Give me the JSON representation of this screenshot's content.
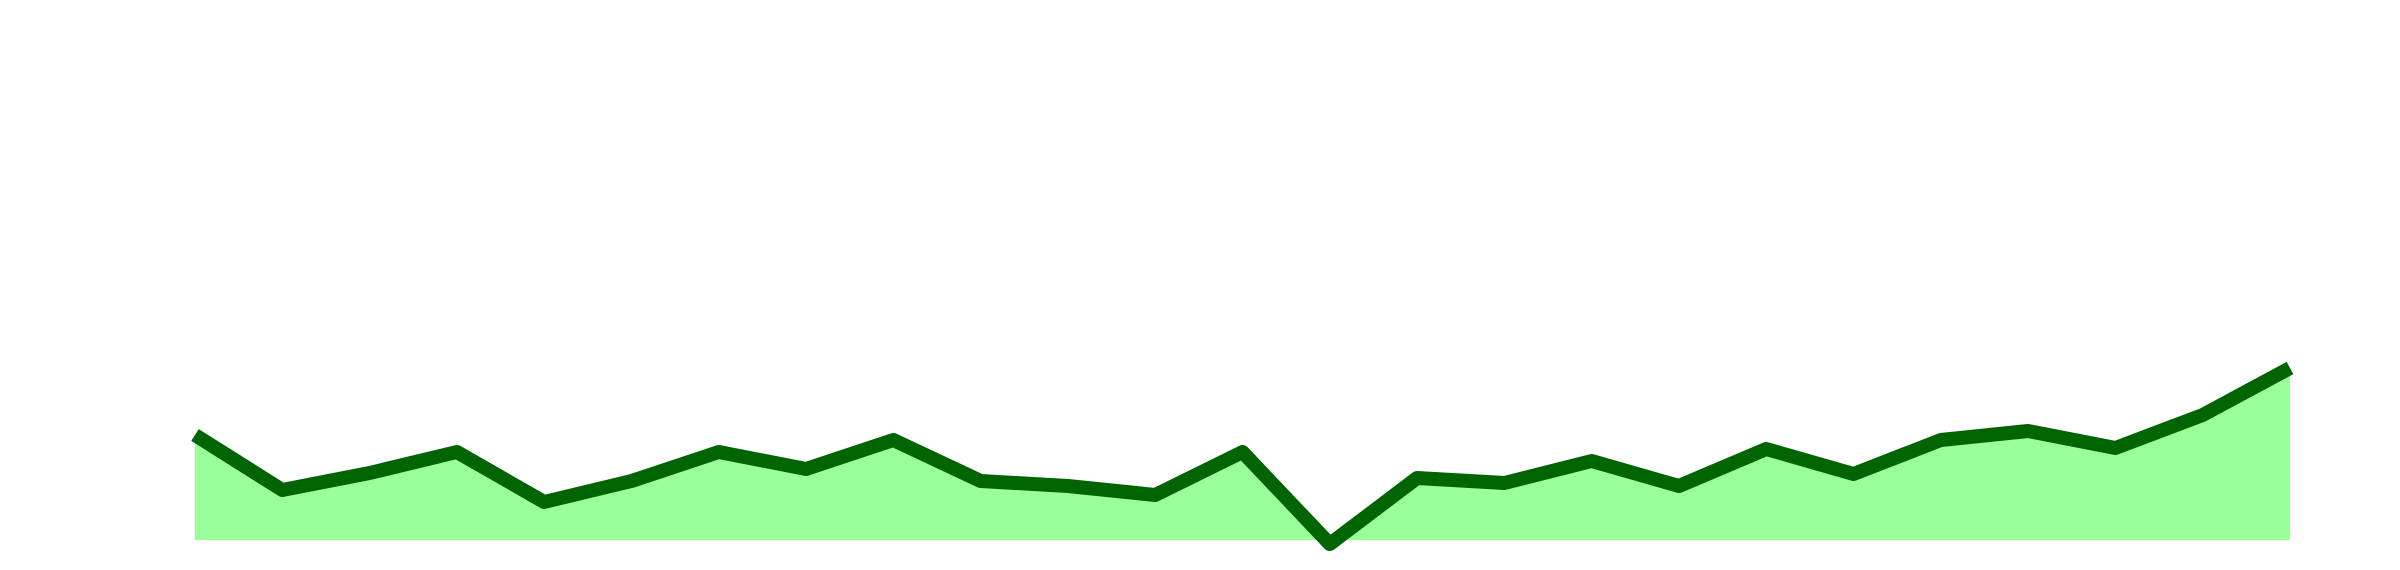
{
  "chart_data": {
    "type": "area",
    "categories": [
      null,
      null,
      null,
      null,
      null,
      null,
      null,
      null,
      null,
      null,
      null,
      null,
      null,
      null,
      null,
      null,
      null,
      null,
      null,
      null,
      null,
      null,
      null,
      null,
      null
    ],
    "values": [
      135,
      80,
      97,
      118,
      68,
      89,
      118,
      101,
      130,
      89,
      84,
      75,
      118,
      26,
      92,
      87,
      109,
      84,
      121,
      96,
      130,
      139,
      122,
      155,
      202
    ],
    "ylim": [
      0,
      570
    ],
    "color": "#006400",
    "fill_color": "#99ff99"
  }
}
